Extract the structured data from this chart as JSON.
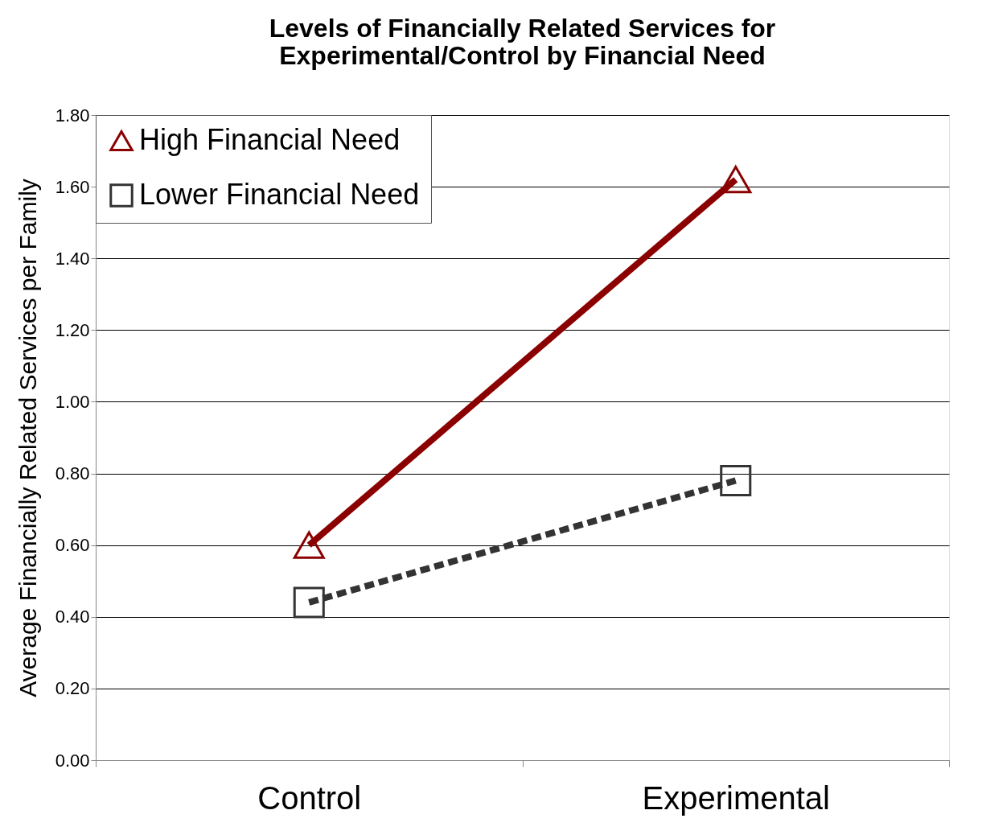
{
  "chart_data": {
    "type": "line",
    "title": [
      "Levels of Financially Related Services for",
      "Experimental/Control by Financial Need"
    ],
    "ylabel": "Average Financially Related Services per Family",
    "categories": [
      "Control",
      "Experimental"
    ],
    "series": [
      {
        "name": "High Financial Need",
        "color": "#8b0000",
        "values": [
          0.6,
          1.62
        ],
        "marker": "triangle",
        "line_style": "solid"
      },
      {
        "name": "Lower Financial Need",
        "color": "#333333",
        "values": [
          0.44,
          0.78
        ],
        "marker": "square",
        "line_style": "dashed"
      }
    ],
    "ylim": [
      0,
      1.8
    ],
    "yticks": [
      {
        "value": 0,
        "label": "0.00"
      },
      {
        "value": 0.2,
        "label": "0.20"
      },
      {
        "value": 0.4,
        "label": "0.40"
      },
      {
        "value": 0.6,
        "label": "0.60"
      },
      {
        "value": 0.8,
        "label": "0.80"
      },
      {
        "value": 1.0,
        "label": "1.00"
      },
      {
        "value": 1.2,
        "label": "1.20"
      },
      {
        "value": 1.4,
        "label": "1.40"
      },
      {
        "value": 1.6,
        "label": "1.60"
      },
      {
        "value": 1.8,
        "label": "1.80"
      }
    ],
    "grid": "y",
    "legend": "top left"
  }
}
